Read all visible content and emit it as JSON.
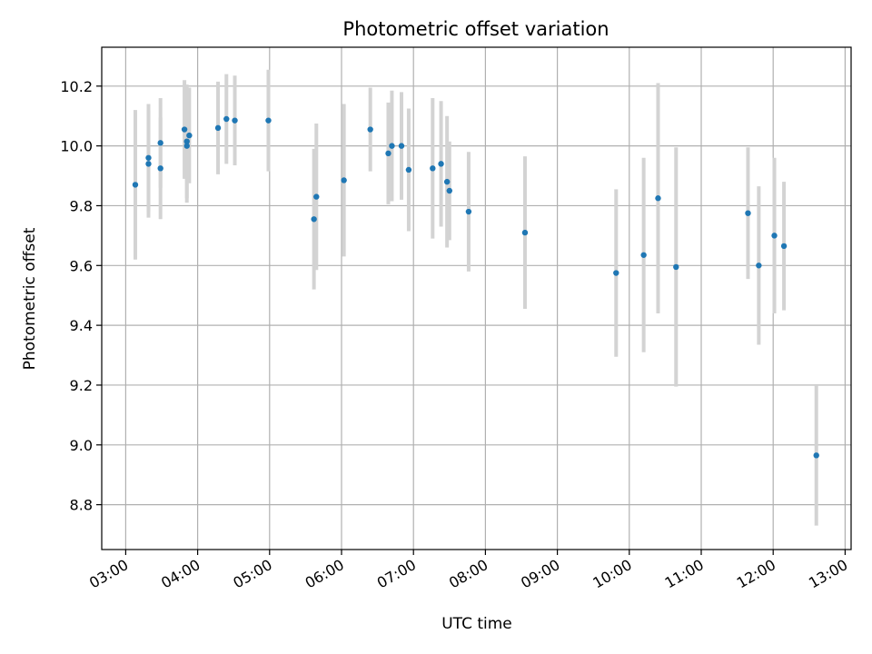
{
  "chart_data": {
    "type": "scatter",
    "title": "Photometric offset variation",
    "xlabel": "UTC time",
    "ylabel": "Photometric offset",
    "x_tick_labels": [
      "03:00",
      "04:00",
      "05:00",
      "06:00",
      "07:00",
      "08:00",
      "09:00",
      "10:00",
      "11:00",
      "12:00",
      "13:00"
    ],
    "y_tick_labels": [
      "8.8",
      "9.0",
      "9.2",
      "9.4",
      "9.6",
      "9.8",
      "10.0",
      "10.2"
    ],
    "xlim": [
      "02:40",
      "13:05"
    ],
    "ylim": [
      8.65,
      10.33
    ],
    "grid": true,
    "series": [
      {
        "marker_color": "#1f77b4",
        "errorbar_color": "#d3d3d3",
        "points": [
          {
            "x": "03:08",
            "y": 9.87,
            "err": 0.25
          },
          {
            "x": "03:19",
            "y": 9.94,
            "err": 0.18
          },
          {
            "x": "03:19",
            "y": 9.96,
            "err": 0.18
          },
          {
            "x": "03:29",
            "y": 9.925,
            "err": 0.17
          },
          {
            "x": "03:29",
            "y": 10.01,
            "err": 0.15
          },
          {
            "x": "03:49",
            "y": 10.055,
            "err": 0.165
          },
          {
            "x": "03:51",
            "y": 10.0,
            "err": 0.19
          },
          {
            "x": "03:51",
            "y": 10.015,
            "err": 0.19
          },
          {
            "x": "03:53",
            "y": 10.035,
            "err": 0.16
          },
          {
            "x": "04:17",
            "y": 10.06,
            "err": 0.155
          },
          {
            "x": "04:24",
            "y": 10.09,
            "err": 0.15
          },
          {
            "x": "04:31",
            "y": 10.085,
            "err": 0.15
          },
          {
            "x": "04:59",
            "y": 10.085,
            "err": 0.17
          },
          {
            "x": "05:37",
            "y": 9.755,
            "err": 0.235
          },
          {
            "x": "05:39",
            "y": 9.83,
            "err": 0.245
          },
          {
            "x": "06:02",
            "y": 9.885,
            "err": 0.255
          },
          {
            "x": "06:24",
            "y": 10.055,
            "err": 0.14
          },
          {
            "x": "06:39",
            "y": 9.975,
            "err": 0.17
          },
          {
            "x": "06:42",
            "y": 10.0,
            "err": 0.185
          },
          {
            "x": "06:50",
            "y": 10.0,
            "err": 0.18
          },
          {
            "x": "06:56",
            "y": 9.92,
            "err": 0.205
          },
          {
            "x": "07:16",
            "y": 9.925,
            "err": 0.235
          },
          {
            "x": "07:23",
            "y": 9.94,
            "err": 0.21
          },
          {
            "x": "07:28",
            "y": 9.88,
            "err": 0.22
          },
          {
            "x": "07:30",
            "y": 9.85,
            "err": 0.165
          },
          {
            "x": "07:46",
            "y": 9.78,
            "err": 0.2
          },
          {
            "x": "08:33",
            "y": 9.71,
            "err": 0.255
          },
          {
            "x": "09:49",
            "y": 9.575,
            "err": 0.28
          },
          {
            "x": "10:12",
            "y": 9.635,
            "err": 0.325
          },
          {
            "x": "10:24",
            "y": 9.825,
            "err": 0.385
          },
          {
            "x": "10:39",
            "y": 9.595,
            "err": 0.4
          },
          {
            "x": "11:39",
            "y": 9.775,
            "err": 0.22
          },
          {
            "x": "11:48",
            "y": 9.6,
            "err": 0.265
          },
          {
            "x": "12:01",
            "y": 9.7,
            "err": 0.26
          },
          {
            "x": "12:09",
            "y": 9.665,
            "err": 0.215
          },
          {
            "x": "12:36",
            "y": 8.965,
            "err": 0.235
          }
        ]
      }
    ]
  }
}
